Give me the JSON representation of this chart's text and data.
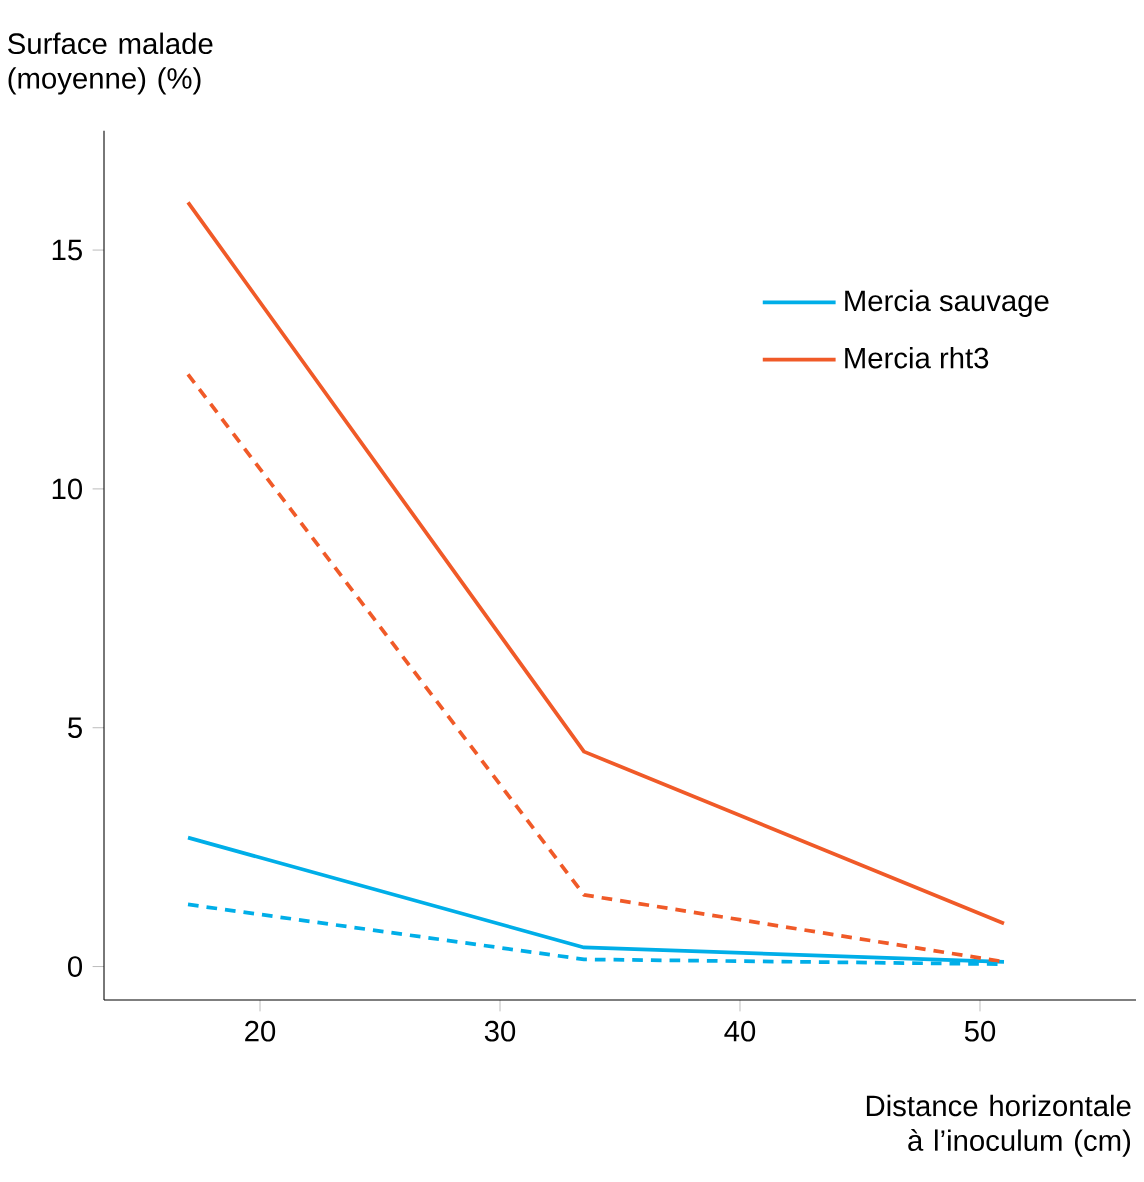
{
  "chart_data": {
    "type": "line",
    "ylabel": "Surface malade (moyenne) (%)",
    "xlabel": "Distance horizontale à l’inoculum (cm)",
    "x": [
      17,
      33.5,
      51
    ],
    "series": [
      {
        "name": "Mercia sauvage",
        "color": "#00aee8",
        "values": [
          2.7,
          0.4,
          0.1
        ],
        "line_style": "solid"
      },
      {
        "name": "Mercia rht3",
        "color": "#f05a28",
        "values": [
          16,
          4.5,
          0.9
        ],
        "line_style": "solid"
      },
      {
        "color": "#f05a28",
        "values": [
          12.4,
          1.5,
          0.1
        ],
        "line_style": "dashed"
      },
      {
        "color": "#00aee8",
        "values": [
          1.3,
          0.15,
          0.05
        ],
        "line_style": "dashed"
      }
    ],
    "xlim": [
      13.5,
      56.5
    ],
    "ylim": [
      -0.7,
      17.5
    ],
    "xticks": [
      20,
      30,
      40,
      50
    ],
    "yticks": [
      0,
      5,
      10,
      15
    ],
    "grid": false,
    "legend": "top right",
    "marker": "none"
  }
}
